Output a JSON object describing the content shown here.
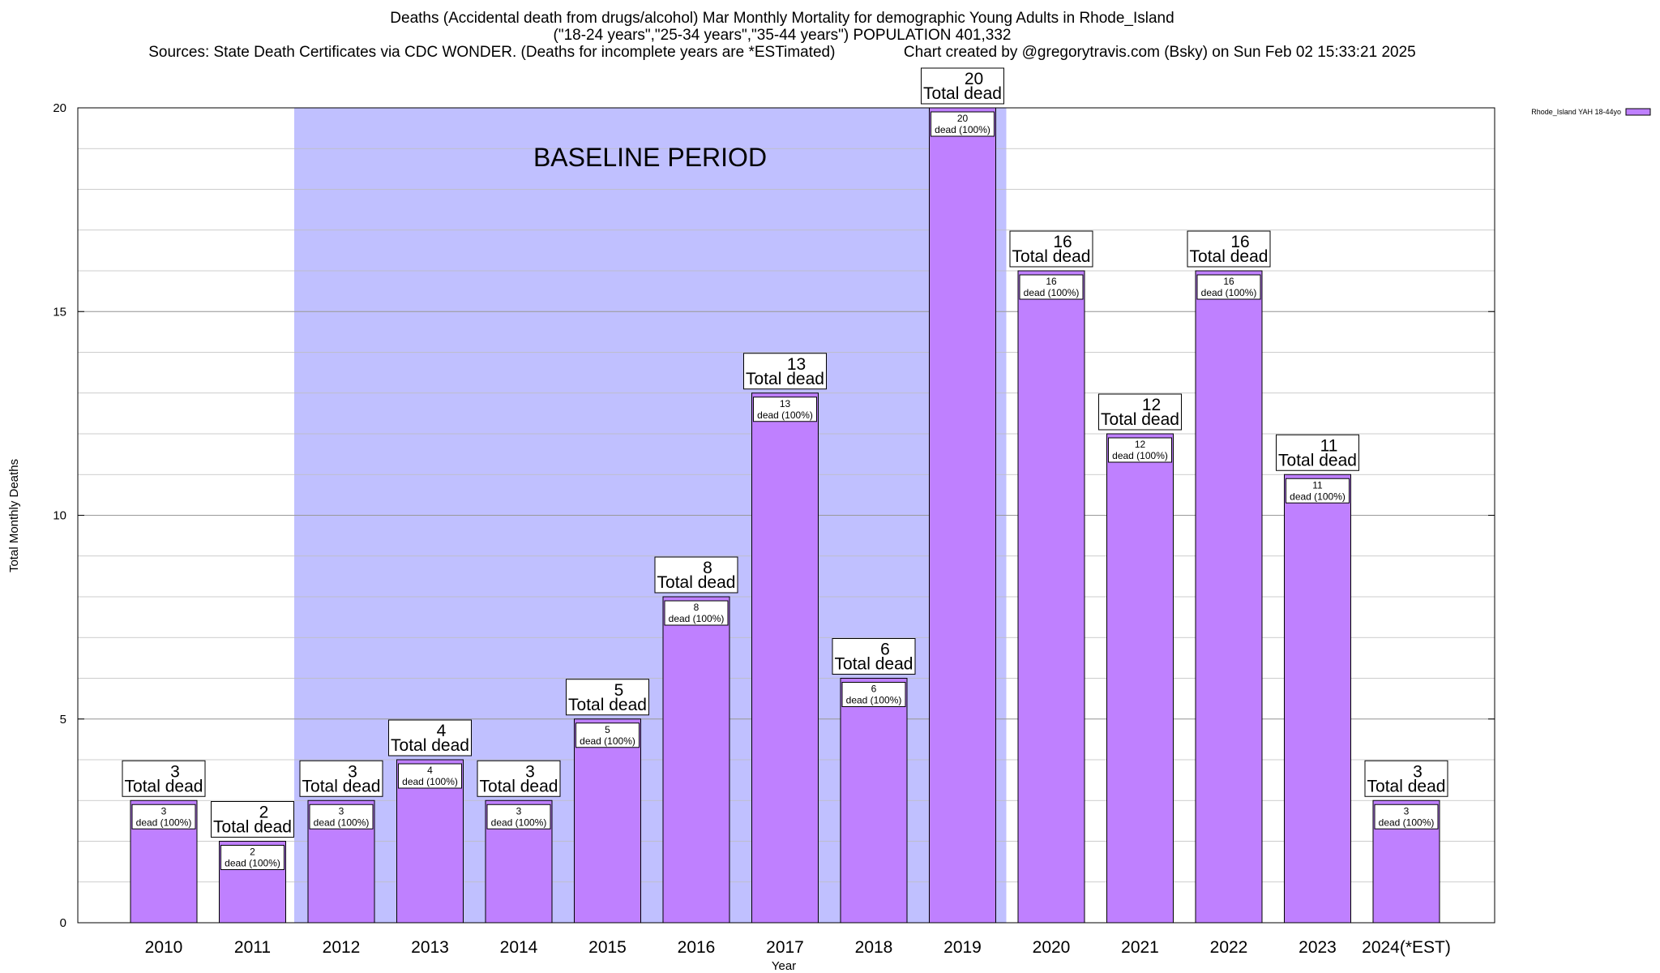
{
  "chart_data": {
    "type": "bar",
    "title_lines": [
      "Deaths (Accidental death from drugs/alcohol) Mar Monthly Mortality for demographic Young Adults in Rhode_Island",
      "(\"18-24 years\",\"25-34 years\",\"35-44 years\") POPULATION 401,332",
      "Sources: State Death Certificates via CDC WONDER. (Deaths for incomplete years are *ESTimated)                Chart created by @gregorytravis.com (Bsky) on Sun Feb 02 15:33:21 2025"
    ],
    "xlabel": "Year",
    "ylabel": "Total Monthly Deaths",
    "ylim": [
      0,
      20
    ],
    "yticks": [
      0,
      5,
      10,
      15,
      20
    ],
    "categories": [
      "2010",
      "2011",
      "2012",
      "2013",
      "2014",
      "2015",
      "2016",
      "2017",
      "2018",
      "2019",
      "2020",
      "2021",
      "2022",
      "2023",
      "2024(*EST)"
    ],
    "series": [
      {
        "name": "Rhode_Island YAH 18-44yo",
        "color": "#bf80ff",
        "values": [
          3,
          2,
          3,
          4,
          3,
          5,
          8,
          13,
          6,
          20,
          16,
          12,
          16,
          11,
          3
        ]
      }
    ],
    "total_label_text": "Total dead",
    "inner_label_text": "dead (100%)",
    "baseline_band": {
      "label": "BASELINE PERIOD",
      "from_category": "2012",
      "to_category": "2019",
      "color": "#c0c0ff"
    },
    "grid": true,
    "legend_position": "top-right"
  }
}
